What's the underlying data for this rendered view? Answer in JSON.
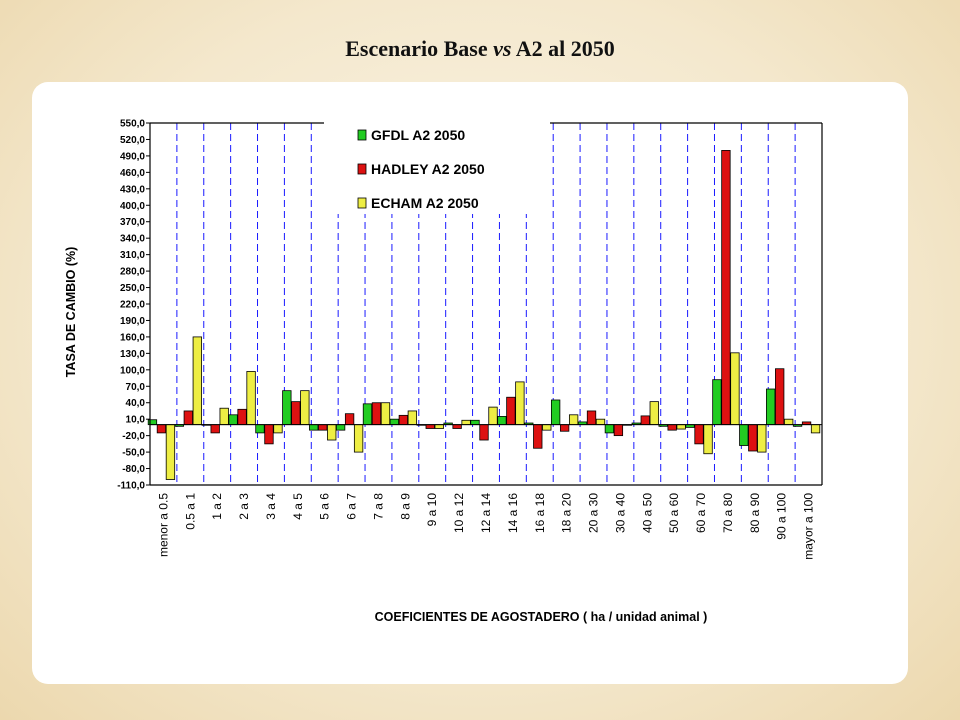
{
  "slide": {
    "title_pre": "Escenario Base ",
    "title_vs": "vs",
    "title_post": " A2 al 2050"
  },
  "colors": {
    "gfdl": "#22cc22",
    "hadley": "#dd1111",
    "echam": "#eeee44",
    "grid": "#1a1aff"
  },
  "chart_data": {
    "type": "bar",
    "title": "Escenario Base vs A2 al 2050",
    "xlabel": "COEFICIENTES DE AGOSTADERO ( ha / unidad animal )",
    "ylabel": "TASA DE CAMBIO (%)",
    "ylim": [
      -110,
      550
    ],
    "yticks": [
      "550,0",
      "520,0",
      "490,0",
      "460,0",
      "430,0",
      "400,0",
      "370,0",
      "340,0",
      "310,0",
      "280,0",
      "250,0",
      "220,0",
      "190,0",
      "160,0",
      "130,0",
      "100,0",
      "70,0",
      "40,0",
      "10,0",
      "-20,0",
      "-50,0",
      "-80,0",
      "-110,0"
    ],
    "legend_position": "top-center",
    "grid": "vertical dashed",
    "categories": [
      "menor a 0.5",
      "0.5 a 1",
      "1 a 2",
      "2 a 3",
      "3 a 4",
      "4 a 5",
      "5 a 6",
      "6 a 7",
      "7 a 8",
      "8 a 9",
      "9 a 10",
      "10 a 12",
      "12 a 14",
      "14 a 16",
      "16 a 18",
      "18 a 20",
      "20 a 30",
      "30 a 40",
      "40 a 50",
      "50 a 60",
      "60 a 70",
      "70 a 80",
      "80 a 90",
      "90 a 100",
      "mayor a 100"
    ],
    "series": [
      {
        "name": "GFDL A2 2050",
        "color": "#22cc22",
        "values": [
          9,
          -3,
          0,
          18,
          -15,
          62,
          -10,
          -10,
          38,
          10,
          0,
          3,
          8,
          15,
          3,
          45,
          5,
          -15,
          3,
          -3,
          -5,
          82,
          -38,
          65,
          -3
        ]
      },
      {
        "name": "HADLEY A2 2050",
        "color": "#dd1111",
        "values": [
          -15,
          25,
          -15,
          28,
          -35,
          42,
          -10,
          20,
          40,
          17,
          -7,
          -7,
          -28,
          50,
          -43,
          -12,
          25,
          -20,
          16,
          -10,
          -35,
          500,
          -48,
          102,
          5
        ]
      },
      {
        "name": "ECHAM A2 2050",
        "color": "#eeee44",
        "values": [
          -100,
          160,
          30,
          97,
          -15,
          62,
          -28,
          -50,
          40,
          25,
          -7,
          8,
          32,
          78,
          -10,
          18,
          10,
          0,
          42,
          -8,
          -53,
          131,
          -50,
          10,
          -15
        ]
      }
    ]
  }
}
